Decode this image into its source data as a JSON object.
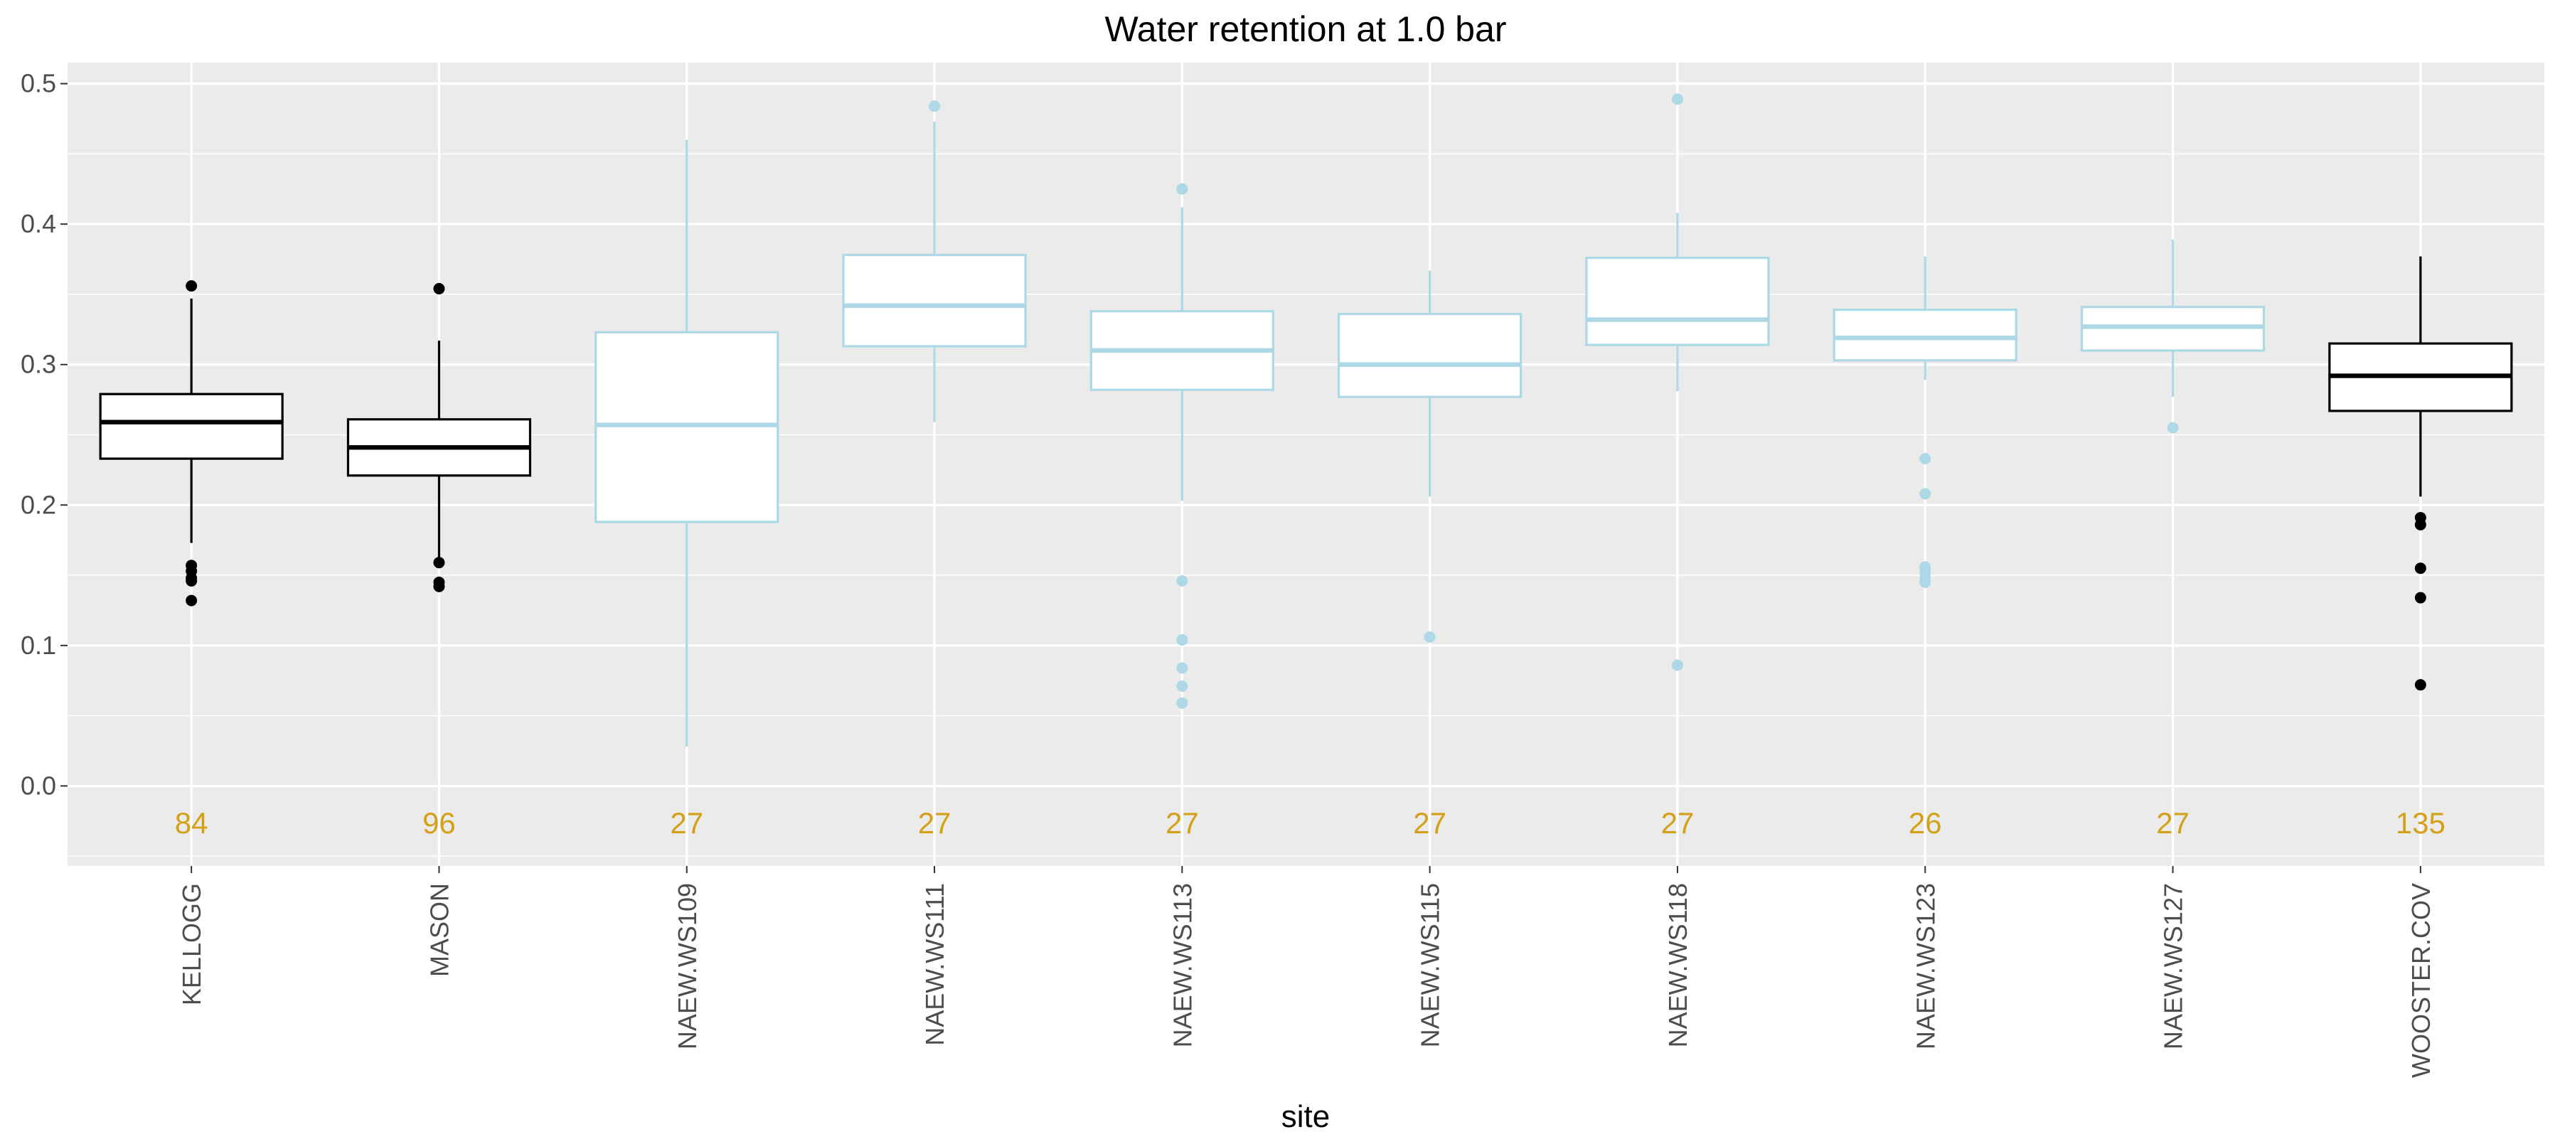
{
  "chart_data": {
    "type": "box",
    "title": "Water retention at 1.0 bar",
    "xlabel": "site",
    "ylabel": "",
    "ylim": [
      -0.057,
      0.515
    ],
    "yticks": [
      0.0,
      0.1,
      0.2,
      0.3,
      0.4,
      0.5
    ],
    "ytick_labels": [
      "0.0",
      "0.1",
      "0.2",
      "0.3",
      "0.4",
      "0.5"
    ],
    "grid": true,
    "panel_background": "#ebebeb",
    "count_label_color": "#d4a017",
    "count_label_y": -0.026,
    "categories": [
      "KELLOGG",
      "MASON",
      "NAEW.WS109",
      "NAEW.WS111",
      "NAEW.WS113",
      "NAEW.WS115",
      "NAEW.WS118",
      "NAEW.WS123",
      "NAEW.WS127",
      "WOOSTER.COV"
    ],
    "boxes": [
      {
        "site": "KELLOGG",
        "color": "#000000",
        "q1": 0.233,
        "median": 0.259,
        "q3": 0.279,
        "whisker_low": 0.173,
        "whisker_high": 0.347,
        "outliers": [
          0.356,
          0.157,
          0.153,
          0.148,
          0.146,
          0.132
        ],
        "n": "84"
      },
      {
        "site": "MASON",
        "color": "#000000",
        "q1": 0.221,
        "median": 0.241,
        "q3": 0.261,
        "whisker_low": 0.162,
        "whisker_high": 0.317,
        "outliers": [
          0.354,
          0.159,
          0.145,
          0.142
        ],
        "n": "96"
      },
      {
        "site": "NAEW.WS109",
        "color": "#add8e6",
        "q1": 0.188,
        "median": 0.257,
        "q3": 0.323,
        "whisker_low": 0.028,
        "whisker_high": 0.46,
        "outliers": [],
        "n": "27"
      },
      {
        "site": "NAEW.WS111",
        "color": "#add8e6",
        "q1": 0.313,
        "median": 0.342,
        "q3": 0.378,
        "whisker_low": 0.259,
        "whisker_high": 0.473,
        "outliers": [
          0.484
        ],
        "n": "27"
      },
      {
        "site": "NAEW.WS113",
        "color": "#add8e6",
        "q1": 0.282,
        "median": 0.31,
        "q3": 0.338,
        "whisker_low": 0.203,
        "whisker_high": 0.412,
        "outliers": [
          0.425,
          0.146,
          0.104,
          0.084,
          0.071,
          0.059
        ],
        "n": "27"
      },
      {
        "site": "NAEW.WS115",
        "color": "#add8e6",
        "q1": 0.277,
        "median": 0.3,
        "q3": 0.336,
        "whisker_low": 0.206,
        "whisker_high": 0.367,
        "outliers": [
          0.106
        ],
        "n": "27"
      },
      {
        "site": "NAEW.WS118",
        "color": "#add8e6",
        "q1": 0.314,
        "median": 0.332,
        "q3": 0.376,
        "whisker_low": 0.281,
        "whisker_high": 0.408,
        "outliers": [
          0.489,
          0.086
        ],
        "n": "27"
      },
      {
        "site": "NAEW.WS123",
        "color": "#add8e6",
        "q1": 0.303,
        "median": 0.319,
        "q3": 0.339,
        "whisker_low": 0.289,
        "whisker_high": 0.377,
        "outliers": [
          0.233,
          0.208,
          0.156,
          0.152,
          0.148,
          0.145
        ],
        "n": "26"
      },
      {
        "site": "NAEW.WS127",
        "color": "#add8e6",
        "q1": 0.31,
        "median": 0.327,
        "q3": 0.341,
        "whisker_low": 0.277,
        "whisker_high": 0.389,
        "outliers": [
          0.255
        ],
        "n": "27"
      },
      {
        "site": "WOOSTER.COV",
        "color": "#000000",
        "q1": 0.267,
        "median": 0.292,
        "q3": 0.315,
        "whisker_low": 0.206,
        "whisker_high": 0.377,
        "outliers": [
          0.191,
          0.186,
          0.155,
          0.134,
          0.072
        ],
        "n": "135"
      }
    ]
  }
}
